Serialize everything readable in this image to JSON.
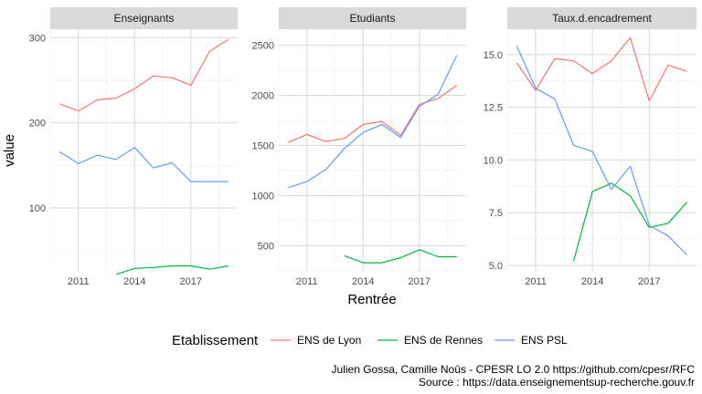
{
  "chart_data": {
    "type": "line",
    "x_label": "Rentrée",
    "y_label": "value",
    "x_ticks": [
      2011,
      2014,
      2017
    ],
    "series_meta": [
      {
        "name": "ENS de Lyon",
        "color": "#F8766D"
      },
      {
        "name": "ENS de Rennes",
        "color": "#00BA38"
      },
      {
        "name": "ENS PSL",
        "color": "#619CFF"
      }
    ],
    "legend": {
      "title": "Etablissement",
      "position": "bottom"
    },
    "grid": true,
    "panels": [
      {
        "title": "Enseignants",
        "ylim": [
          25,
          310
        ],
        "y_ticks": [
          100,
          200,
          300
        ],
        "xlim": [
          2009.5,
          2019.5
        ],
        "series": [
          {
            "name": "ENS de Lyon",
            "x": [
              2010,
              2011,
              2012,
              2013,
              2014,
              2015,
              2016,
              2017,
              2018,
              2019
            ],
            "y": [
              222,
              214,
              227,
              229,
              240,
              255,
              253,
              244,
              284,
              298
            ]
          },
          {
            "name": "ENS de Rennes",
            "x": [
              2013,
              2014,
              2015,
              2016,
              2017,
              2018,
              2019
            ],
            "y": [
              22,
              29,
              30,
              32,
              32,
              28,
              32
            ]
          },
          {
            "name": "ENS PSL",
            "x": [
              2010,
              2011,
              2012,
              2013,
              2014,
              2015,
              2016,
              2017,
              2018,
              2019
            ],
            "y": [
              166,
              152,
              162,
              157,
              171,
              147,
              153,
              131,
              131,
              131
            ]
          }
        ]
      },
      {
        "title": "Etudiants",
        "ylim": [
          240,
          2660
        ],
        "y_ticks": [
          500,
          1000,
          1500,
          2000,
          2500
        ],
        "xlim": [
          2009.5,
          2019.5
        ],
        "series": [
          {
            "name": "ENS de Lyon",
            "x": [
              2010,
              2011,
              2012,
              2013,
              2014,
              2015,
              2016,
              2017,
              2018,
              2019
            ],
            "y": [
              1530,
              1610,
              1540,
              1570,
              1710,
              1740,
              1600,
              1910,
              1970,
              2100
            ]
          },
          {
            "name": "ENS de Rennes",
            "x": [
              2013,
              2014,
              2015,
              2016,
              2017,
              2018,
              2019
            ],
            "y": [
              400,
              330,
              330,
              380,
              460,
              390,
              390
            ]
          },
          {
            "name": "ENS PSL",
            "x": [
              2010,
              2011,
              2012,
              2013,
              2014,
              2015,
              2016,
              2017,
              2018,
              2019
            ],
            "y": [
              1080,
              1140,
              1260,
              1470,
              1630,
              1710,
              1580,
              1890,
              2010,
              2400
            ]
          }
        ]
      },
      {
        "title": "Taux.d.encadrement",
        "ylim": [
          4.7,
          16.2
        ],
        "y_ticks": [
          5.0,
          7.5,
          10.0,
          12.5,
          15.0
        ],
        "y_tick_labels": [
          "5.0",
          "7.5",
          "10.0",
          "12.5",
          "15.0"
        ],
        "xlim": [
          2009.5,
          2019.5
        ],
        "series": [
          {
            "name": "ENS de Lyon",
            "x": [
              2010,
              2011,
              2012,
              2013,
              2014,
              2015,
              2016,
              2017,
              2018,
              2019
            ],
            "y": [
              14.6,
              13.3,
              14.8,
              14.7,
              14.1,
              14.7,
              15.8,
              12.8,
              14.5,
              14.2
            ]
          },
          {
            "name": "ENS de Rennes",
            "x": [
              2013,
              2014,
              2015,
              2016,
              2017,
              2018,
              2019
            ],
            "y": [
              5.2,
              8.5,
              8.9,
              8.3,
              6.8,
              7.0,
              8.0
            ]
          },
          {
            "name": "ENS PSL",
            "x": [
              2010,
              2011,
              2012,
              2013,
              2014,
              2015,
              2016,
              2017,
              2018,
              2019
            ],
            "y": [
              15.4,
              13.4,
              12.9,
              10.7,
              10.4,
              8.6,
              9.7,
              6.9,
              6.4,
              5.5
            ]
          }
        ]
      }
    ]
  },
  "caption": {
    "line1": "Julien Gossa, Camille Noûs - CPESR LO 2.0 https://github.com/cpesr/RFC",
    "line2": "Source : https://data.enseignementsup-recherche.gouv.fr"
  }
}
